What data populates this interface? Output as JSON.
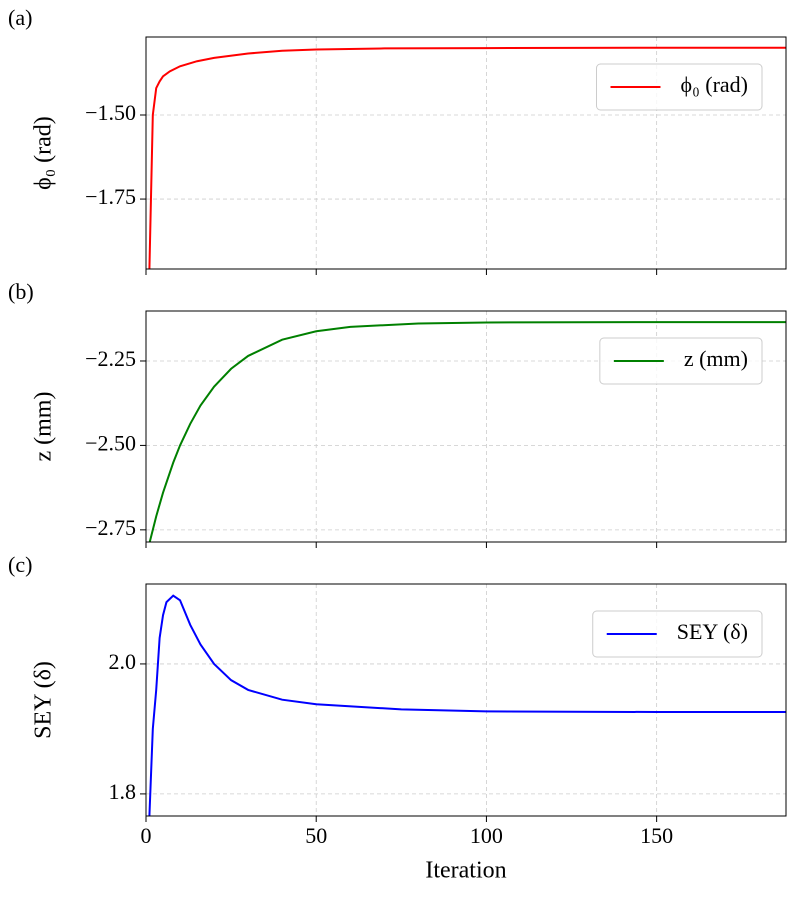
{
  "chart_data": [
    {
      "type": "line",
      "panel_label": "(a)",
      "ylabel": "ϕ₀ (rad)",
      "x": [
        1,
        2,
        3,
        4,
        5,
        7,
        10,
        15,
        20,
        30,
        40,
        50,
        70,
        100,
        150,
        188
      ],
      "series": [
        {
          "name": "ϕ₀ (rad)",
          "color": "#ff0000",
          "values": [
            -1.96,
            -1.5,
            -1.42,
            -1.4,
            -1.385,
            -1.37,
            -1.355,
            -1.34,
            -1.33,
            -1.317,
            -1.309,
            -1.305,
            -1.302,
            -1.301,
            -1.3,
            -1.3
          ]
        }
      ],
      "xlim": [
        0,
        188
      ],
      "ylim": [
        -1.958,
        -1.268
      ],
      "xticks": [
        0,
        50,
        100,
        150
      ],
      "yticks": [
        {
          "value": -1.75,
          "label": "−1.75"
        },
        {
          "value": -1.5,
          "label": "−1.50"
        }
      ],
      "grid": true,
      "legend": "upper right"
    },
    {
      "type": "line",
      "panel_label": "(b)",
      "ylabel": "z (mm)",
      "x": [
        1,
        3,
        5,
        8,
        10,
        13,
        16,
        20,
        25,
        30,
        40,
        50,
        60,
        80,
        100,
        150,
        188
      ],
      "series": [
        {
          "name": "z (mm)",
          "color": "#008000",
          "values": [
            -2.79,
            -2.71,
            -2.64,
            -2.551,
            -2.5,
            -2.436,
            -2.382,
            -2.326,
            -2.273,
            -2.235,
            -2.187,
            -2.162,
            -2.149,
            -2.139,
            -2.136,
            -2.135,
            -2.135
          ]
        }
      ],
      "xlim": [
        0,
        188
      ],
      "ylim": [
        -2.786,
        -2.102
      ],
      "xticks": [
        0,
        50,
        100,
        150
      ],
      "yticks": [
        {
          "value": -2.75,
          "label": "−2.75"
        },
        {
          "value": -2.5,
          "label": "−2.50"
        },
        {
          "value": -2.25,
          "label": "−2.25"
        }
      ],
      "grid": true,
      "legend": "upper right"
    },
    {
      "type": "line",
      "panel_label": "(c)",
      "ylabel": "SEY (δ)",
      "xlabel": "Iteration",
      "x": [
        1,
        2,
        3,
        4,
        5,
        6,
        8,
        10,
        13,
        16,
        20,
        25,
        30,
        40,
        50,
        75,
        100,
        150,
        188
      ],
      "series": [
        {
          "name": "SEY (δ)",
          "color": "#0000ff",
          "values": [
            1.766,
            1.9,
            1.96,
            2.04,
            2.075,
            2.095,
            2.105,
            2.098,
            2.06,
            2.03,
            2.0,
            1.975,
            1.96,
            1.945,
            1.938,
            1.93,
            1.927,
            1.926,
            1.926
          ]
        }
      ],
      "xlim": [
        0,
        188
      ],
      "ylim": [
        1.766,
        2.123
      ],
      "xticks": [
        0,
        50,
        100,
        150
      ],
      "yticks": [
        1.8,
        {
          "value": 2,
          "label": "2.0"
        }
      ],
      "grid": true,
      "legend": "upper right"
    }
  ]
}
